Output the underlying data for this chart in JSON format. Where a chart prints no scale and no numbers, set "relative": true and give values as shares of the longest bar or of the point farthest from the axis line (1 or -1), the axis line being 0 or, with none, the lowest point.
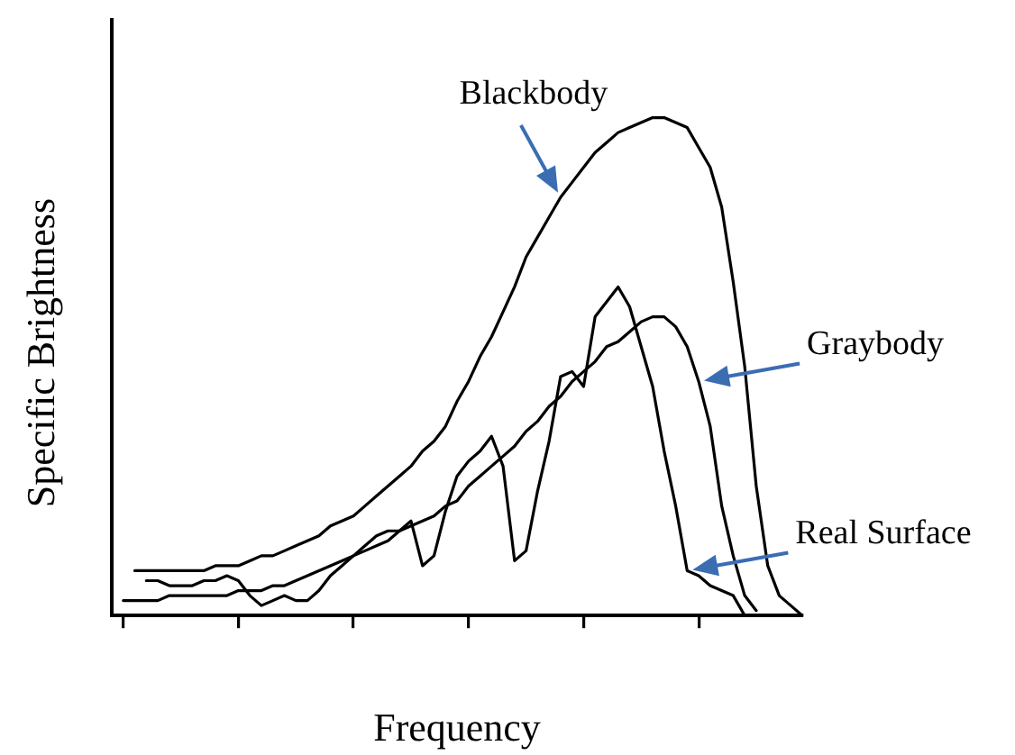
{
  "chart_data": {
    "type": "line",
    "relative": true,
    "xlabel": "Frequency",
    "ylabel": "Specific Brightness",
    "legend": false,
    "marker": "none",
    "line_style": "solid",
    "categories": [
      null,
      null,
      null,
      null,
      null,
      null,
      null,
      null,
      null,
      null,
      null,
      null,
      null,
      null,
      null,
      null,
      null,
      null,
      null,
      null,
      null,
      null,
      null,
      null,
      null,
      null,
      null,
      null,
      null,
      null,
      null,
      null,
      null,
      null,
      null,
      null,
      null,
      null,
      null,
      null,
      null,
      null,
      null,
      null,
      null,
      null,
      null,
      null,
      null,
      null,
      null,
      null,
      null,
      null,
      null,
      null,
      null,
      null,
      null,
      null,
      null
    ],
    "series": [
      {
        "name": "Blackbody",
        "color": "#000000",
        "values": [
          null,
          null,
          0.09,
          0.09,
          0.09,
          0.09,
          0.09,
          0.09,
          0.09,
          0.1,
          0.1,
          0.1,
          0.11,
          0.12,
          0.12,
          0.13,
          0.14,
          0.15,
          0.16,
          0.18,
          0.19,
          0.2,
          0.22,
          0.24,
          0.26,
          0.28,
          0.3,
          0.33,
          0.35,
          0.38,
          0.43,
          0.47,
          0.52,
          0.56,
          0.61,
          0.66,
          0.72,
          0.76,
          0.8,
          0.84,
          0.87,
          0.9,
          0.93,
          0.95,
          0.97,
          0.98,
          0.99,
          1,
          1,
          0.99,
          0.98,
          0.94,
          0.9,
          0.82,
          0.67,
          0.5,
          0.26,
          0.1,
          0.04,
          0.02,
          0
        ]
      },
      {
        "name": "Graybody",
        "color": "#000000",
        "values": [
          null,
          0.03,
          0.03,
          0.03,
          0.03,
          0.04,
          0.04,
          0.04,
          0.04,
          0.04,
          0.04,
          0.05,
          0.05,
          0.05,
          0.06,
          0.06,
          0.07,
          0.08,
          0.09,
          0.1,
          0.11,
          0.12,
          0.13,
          0.14,
          0.15,
          0.17,
          0.18,
          0.19,
          0.2,
          0.22,
          0.23,
          0.26,
          0.28,
          0.3,
          0.32,
          0.34,
          0.37,
          0.39,
          0.42,
          0.44,
          0.47,
          0.49,
          0.51,
          0.54,
          0.55,
          0.57,
          0.59,
          0.6,
          0.6,
          0.58,
          0.54,
          0.47,
          0.38,
          0.22,
          0.12,
          0.04,
          0.01,
          null,
          null,
          null,
          null
        ]
      },
      {
        "name": "Real Surface",
        "color": "#000000",
        "values": [
          null,
          null,
          null,
          0.07,
          0.07,
          0.06,
          0.06,
          0.06,
          0.07,
          0.07,
          0.08,
          0.07,
          0.04,
          0.02,
          0.03,
          0.04,
          0.03,
          0.03,
          0.05,
          0.08,
          0.1,
          0.12,
          0.14,
          0.16,
          0.17,
          0.17,
          0.19,
          0.1,
          0.12,
          0.21,
          0.28,
          0.31,
          0.33,
          0.36,
          0.3,
          0.11,
          0.13,
          0.25,
          0.35,
          0.48,
          0.49,
          0.46,
          0.6,
          0.63,
          0.66,
          0.62,
          0.54,
          0.46,
          0.33,
          0.22,
          0.09,
          0.08,
          0.06,
          0.05,
          0.04,
          0,
          null,
          null,
          null,
          null,
          null
        ]
      }
    ]
  }
}
